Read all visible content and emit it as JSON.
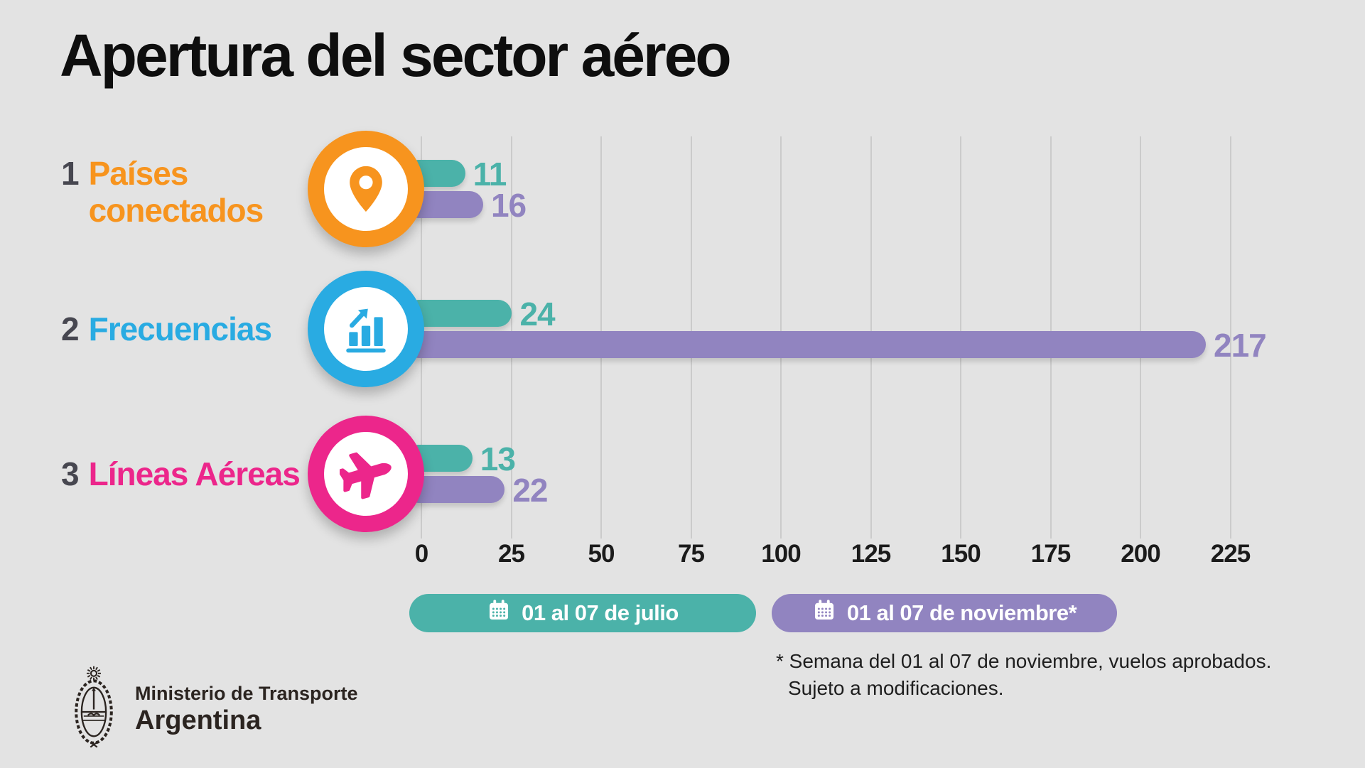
{
  "title": "Apertura del sector aéreo",
  "colors": {
    "background": "#E3E3E3",
    "gridline": "#CBCBCB",
    "series_julio": "#4BB2A9",
    "series_noviembre": "#9184C0",
    "row_number": "#474750",
    "orange": "#F7941E",
    "blue": "#29ABE2",
    "pink": "#EC268B"
  },
  "rows": [
    {
      "number": "1",
      "label": "Países conectados",
      "label_lines": [
        "Países",
        "conectados"
      ],
      "accent": "#F7941E",
      "icon": "location-pin-icon",
      "values": {
        "julio": 11,
        "noviembre": 16
      }
    },
    {
      "number": "2",
      "label": "Frecuencias",
      "label_lines": [
        "Frecuencias"
      ],
      "accent": "#29ABE2",
      "icon": "bar-chart-growth-icon",
      "values": {
        "julio": 24,
        "noviembre": 217
      }
    },
    {
      "number": "3",
      "label": "Líneas Aéreas",
      "label_lines": [
        "Líneas Aéreas"
      ],
      "accent": "#EC268B",
      "icon": "airplane-icon",
      "values": {
        "julio": 13,
        "noviembre": 22
      }
    }
  ],
  "legend": [
    {
      "label": "01 al 07 de julio",
      "color": "#4BB2A9",
      "icon": "calendar-icon"
    },
    {
      "label": "01 al 07 de noviembre*",
      "color": "#9184C0",
      "icon": "calendar-icon"
    }
  ],
  "footnote": {
    "line1": "* Semana del 01 al 07 de noviembre, vuelos aprobados.",
    "line2": "Sujeto a modificaciones."
  },
  "footer": {
    "org": "Ministerio de Transporte",
    "country": "Argentina",
    "logo": "argentina-coat-of-arms"
  },
  "chart_data": {
    "type": "bar",
    "orientation": "horizontal",
    "title": "Apertura del sector aéreo",
    "categories": [
      "Países conectados",
      "Frecuencias",
      "Líneas Aéreas"
    ],
    "series": [
      {
        "name": "01 al 07 de julio",
        "color": "#4BB2A9",
        "values": [
          11,
          24,
          13
        ]
      },
      {
        "name": "01 al 07 de noviembre*",
        "color": "#9184C0",
        "values": [
          16,
          217,
          22
        ]
      }
    ],
    "xlabel": "",
    "ylabel": "",
    "xlim": [
      0,
      225
    ],
    "xticks": [
      0,
      25,
      50,
      75,
      100,
      125,
      150,
      175,
      200,
      225
    ],
    "grid": true,
    "legend_position": "bottom",
    "annotations": [
      "* Semana del 01 al 07 de noviembre, vuelos aprobados. Sujeto a modificaciones."
    ]
  }
}
